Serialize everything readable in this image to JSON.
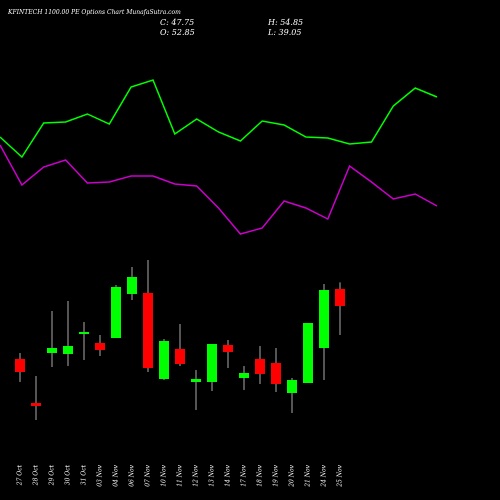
{
  "chart_data": {
    "type": "candlestick",
    "title": "KFINTECH 1100.00 PE Options Chart MunafaSutra.com",
    "ohlc_header": {
      "close": "C: 47.75",
      "high": "H: 54.85",
      "open": "O: 52.85",
      "low": "L: 39.05"
    },
    "categories": [
      "27 Oct",
      "28 Oct",
      "29 Oct",
      "30 Oct",
      "31 Oct",
      "03 Nov",
      "04 Nov",
      "06 Nov",
      "07 Nov",
      "10 Nov",
      "11 Nov",
      "12 Nov",
      "13 Nov",
      "14 Nov",
      "17 Nov",
      "18 Nov",
      "19 Nov",
      "20 Nov",
      "21 Nov",
      "24 Nov",
      "25 Nov"
    ],
    "open": [
      31.85,
      18.65,
      33.65,
      33.35,
      39.35,
      36.65,
      38.15,
      51.35,
      51.65,
      25.85,
      34.85,
      24.95,
      24.95,
      36.05,
      26.15,
      31.85,
      30.65,
      21.65,
      24.65,
      35.15,
      52.85
    ],
    "high": [
      33.65,
      26.75,
      46.25,
      49.25,
      42.95,
      39.05,
      54.05,
      59.45,
      61.55,
      37.85,
      42.35,
      28.55,
      36.35,
      37.55,
      29.75,
      35.75,
      35.15,
      26.15,
      42.65,
      54.35,
      54.85
    ],
    "low": [
      24.95,
      13.55,
      29.45,
      29.75,
      31.55,
      32.75,
      38.15,
      49.55,
      27.95,
      25.55,
      29.75,
      16.55,
      22.25,
      29.15,
      22.55,
      24.35,
      21.95,
      15.65,
      24.65,
      25.55,
      39.05
    ],
    "close": [
      27.95,
      17.75,
      35.15,
      35.75,
      39.95,
      34.55,
      53.45,
      56.45,
      29.15,
      37.25,
      30.35,
      25.85,
      36.35,
      33.95,
      27.65,
      27.35,
      24.35,
      25.55,
      42.65,
      52.55,
      47.75
    ],
    "up_color": "#00ff00",
    "down_color": "#ff0000",
    "wick_color": "#aaaaaa",
    "lines": [
      {
        "color": "#00ff00",
        "values": [
          98.45,
          92.45,
          102.65,
          102.95,
          105.35,
          102.35,
          113.45,
          115.55,
          99.35,
          103.85,
          99.95,
          97.25,
          103.25,
          102.05,
          98.45,
          98.15,
          96.35,
          96.95,
          107.75,
          113.15,
          110.45
        ]
      },
      {
        "color": "#cc00cc",
        "values": [
          96.05,
          84.05,
          89.45,
          91.55,
          84.65,
          84.95,
          86.75,
          86.75,
          84.35,
          83.75,
          77.15,
          69.35,
          71.15,
          79.25,
          77.15,
          73.85,
          89.75,
          84.95,
          79.85,
          81.35,
          77.75
        ]
      }
    ],
    "ylim": [
      1.55,
      139.55
    ]
  }
}
